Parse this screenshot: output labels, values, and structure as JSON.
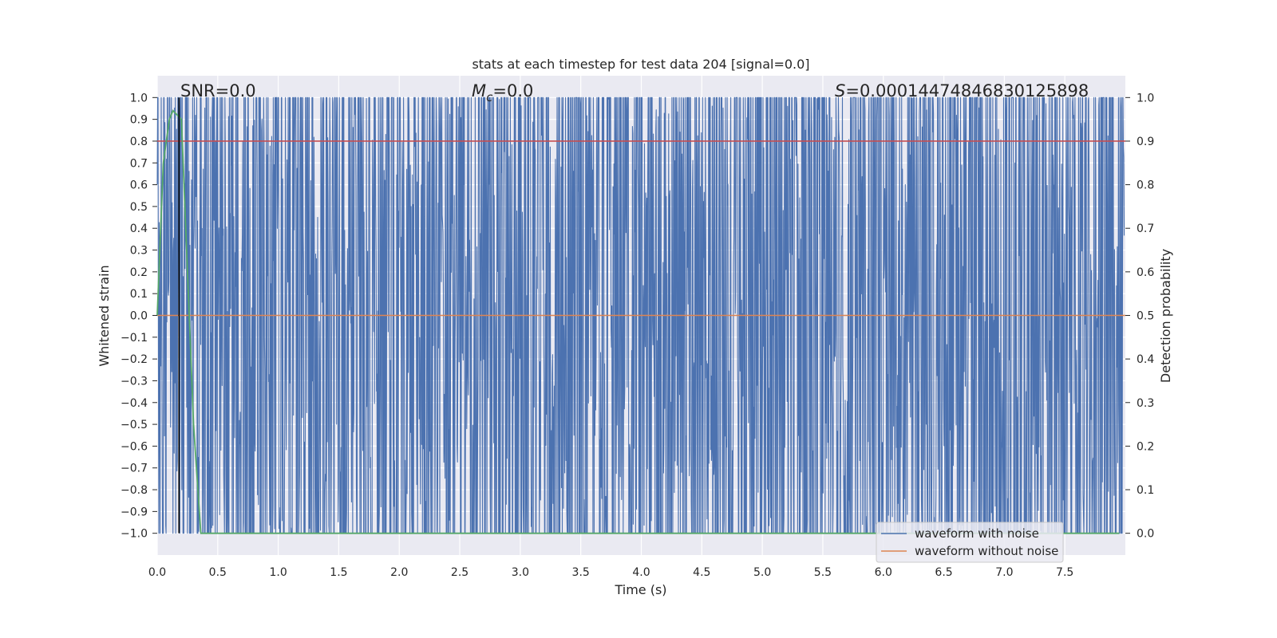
{
  "chart_data": {
    "type": "line",
    "title": "stats at each timestep for test data 204 [signal=0.0]",
    "xlabel": "Time (s)",
    "ylabel": "Whitened strain",
    "ylabel_right": "Detection probability",
    "xlim": [
      0.0,
      8.0
    ],
    "ylim": [
      -1.1,
      1.1
    ],
    "ylim_right": [
      -0.05,
      1.05
    ],
    "x_ticks": [
      "0.0",
      "0.5",
      "1.0",
      "1.5",
      "2.0",
      "2.5",
      "3.0",
      "3.5",
      "4.0",
      "4.5",
      "5.0",
      "5.5",
      "6.0",
      "6.5",
      "7.0",
      "7.5"
    ],
    "y_ticks": [
      "1.0",
      "0.9",
      "0.8",
      "0.7",
      "0.6",
      "0.5",
      "0.4",
      "0.3",
      "0.2",
      "0.1",
      "0.0",
      "−0.1",
      "−0.2",
      "−0.3",
      "−0.4",
      "−0.5",
      "−0.6",
      "−0.7",
      "−0.8",
      "−0.9",
      "−1.0"
    ],
    "y_ticks_right": [
      "1.0",
      "0.9",
      "0.8",
      "0.7",
      "0.6",
      "0.5",
      "0.4",
      "0.3",
      "0.2",
      "0.1",
      "0.0"
    ],
    "grid": true,
    "annotations": {
      "snr": "SNR=0.0",
      "mc_symbol": "M",
      "mc_sub": "c",
      "mc_value": "=0.0",
      "s_symbol": "S",
      "s_value": "=0.00014474846830125898"
    },
    "legend": {
      "placement": "lower-right",
      "entries": [
        "waveform with noise",
        "waveform without noise"
      ]
    },
    "series": [
      {
        "name": "waveform with noise",
        "color": "#4c72b0",
        "kind": "noise clipped to [-1, 1]",
        "range": [
          -1.0,
          1.0
        ]
      },
      {
        "name": "waveform without noise",
        "color": "#dd8452",
        "y": 0.0
      },
      {
        "color": "#c44e52",
        "axis": "right",
        "y": 0.9
      },
      {
        "color": "#55a868",
        "axis": "right",
        "x": [
          0.0,
          0.05,
          0.1,
          0.13,
          0.2,
          0.25,
          0.3,
          0.36,
          0.4,
          7.95
        ],
        "y": [
          0.5,
          0.85,
          0.95,
          0.97,
          0.95,
          0.6,
          0.25,
          0.0,
          0.0,
          0.0
        ]
      },
      {
        "color": "#000000",
        "kind": "vertical line",
        "x": 0.18
      }
    ]
  }
}
